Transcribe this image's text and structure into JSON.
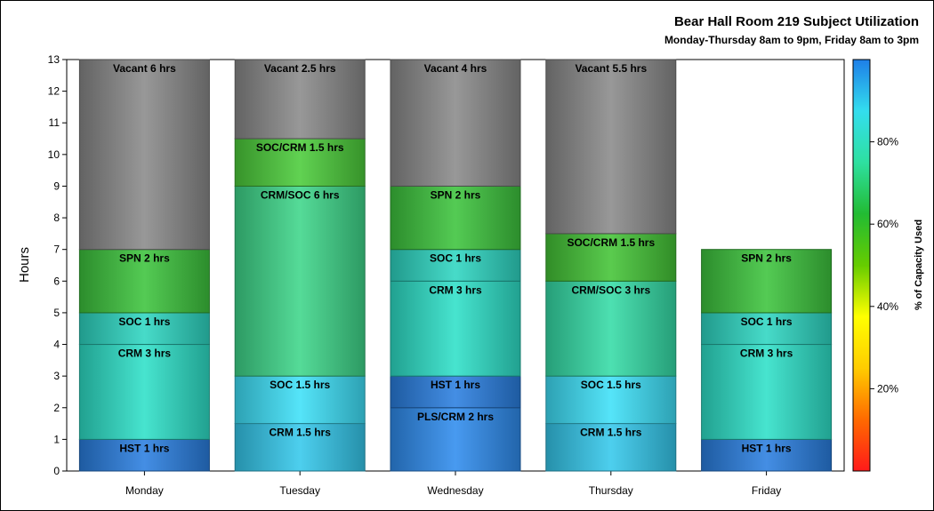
{
  "chart_data": {
    "type": "bar",
    "stacked": true,
    "title": "Bear Hall Room 219 Subject Utilization",
    "subtitle": "Monday-Thursday 8am to 9pm, Friday 8am to 3pm",
    "ylabel": "Hours",
    "xlabel": "",
    "ylim": [
      0,
      13
    ],
    "yticks": [
      0,
      1,
      2,
      3,
      4,
      5,
      6,
      7,
      8,
      9,
      10,
      11,
      12,
      13
    ],
    "categories": [
      "Monday",
      "Tuesday",
      "Wednesday",
      "Thursday",
      "Friday"
    ],
    "stacks": [
      [
        {
          "label": "HST 1 hrs",
          "hours": 1,
          "color": "#2a7fe0"
        },
        {
          "label": "CRM 3 hrs",
          "hours": 3,
          "color": "#2ee0c8"
        },
        {
          "label": "SOC 1 hrs",
          "hours": 1,
          "color": "#2ed6c2"
        },
        {
          "label": "SPN 2 hrs",
          "hours": 2,
          "color": "#3dc43d"
        },
        {
          "label": "Vacant 6 hrs",
          "hours": 6,
          "color": "#8a8a8a"
        }
      ],
      [
        {
          "label": "CRM 1.5 hrs",
          "hours": 1.5,
          "color": "#35c8ec"
        },
        {
          "label": "SOC 1.5 hrs",
          "hours": 1.5,
          "color": "#3ee0f8"
        },
        {
          "label": "CRM/SOC 6 hrs",
          "hours": 6,
          "color": "#3ed68a"
        },
        {
          "label": "SOC/CRM 1.5 hrs",
          "hours": 1.5,
          "color": "#4ccc3a"
        },
        {
          "label": "Vacant 2.5 hrs",
          "hours": 2.5,
          "color": "#8a8a8a"
        }
      ],
      [
        {
          "label": "PLS/CRM 2 hrs",
          "hours": 2,
          "color": "#2f8cee"
        },
        {
          "label": "HST 1 hrs",
          "hours": 1,
          "color": "#2a7fe0"
        },
        {
          "label": "CRM 3 hrs",
          "hours": 3,
          "color": "#2ee0c8"
        },
        {
          "label": "SOC 1 hrs",
          "hours": 1,
          "color": "#2ed6c2"
        },
        {
          "label": "SPN 2 hrs",
          "hours": 2,
          "color": "#3dc43d"
        },
        {
          "label": "Vacant 4 hrs",
          "hours": 4,
          "color": "#8a8a8a"
        }
      ],
      [
        {
          "label": "CRM 1.5 hrs",
          "hours": 1.5,
          "color": "#35c8ec"
        },
        {
          "label": "SOC 1.5 hrs",
          "hours": 1.5,
          "color": "#3ee0f8"
        },
        {
          "label": "CRM/SOC 3 hrs",
          "hours": 3,
          "color": "#35dca6"
        },
        {
          "label": "SOC/CRM 1.5 hrs",
          "hours": 1.5,
          "color": "#44c436"
        },
        {
          "label": "Vacant 5.5 hrs",
          "hours": 5.5,
          "color": "#8a8a8a"
        }
      ],
      [
        {
          "label": "HST 1 hrs",
          "hours": 1,
          "color": "#2a7fe0"
        },
        {
          "label": "CRM 3 hrs",
          "hours": 3,
          "color": "#2ee0c8"
        },
        {
          "label": "SOC 1 hrs",
          "hours": 1,
          "color": "#2ed6c2"
        },
        {
          "label": "SPN 2 hrs",
          "hours": 2,
          "color": "#3dc43d"
        }
      ]
    ],
    "colorbar": {
      "label": "% of Capacity Used",
      "ticks": [
        "20%",
        "40%",
        "60%",
        "80%"
      ],
      "tick_values": [
        20,
        40,
        60,
        80
      ],
      "range": [
        0,
        100
      ],
      "gradient": [
        "#ff1a1a",
        "#ff6a00",
        "#ffcc00",
        "#ffff00",
        "#66cc00",
        "#22bb33",
        "#2ee0a0",
        "#33ddee",
        "#1e7fe8"
      ]
    }
  }
}
